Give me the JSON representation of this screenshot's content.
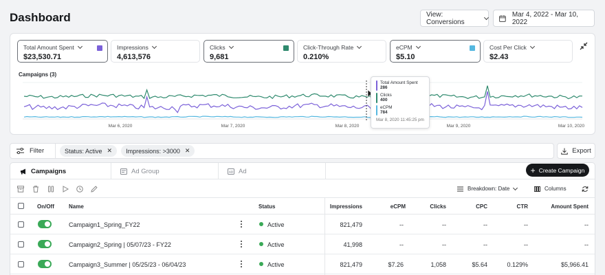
{
  "header": {
    "title": "Dashboard",
    "view_select": "View: Conversions",
    "date_range": "Mar 4, 2022 - Mar 10, 2022"
  },
  "metrics": [
    {
      "label": "Total Amount Spent",
      "value": "$23,530.71",
      "swatch": "#7b61d9",
      "selected": true
    },
    {
      "label": "Impressions",
      "value": "4,613,576",
      "swatch": null,
      "selected": false
    },
    {
      "label": "Clicks",
      "value": "9,681",
      "swatch": "#2f8a6e",
      "selected": true
    },
    {
      "label": "Click-Through Rate",
      "value": "0.210%",
      "swatch": null,
      "selected": false
    },
    {
      "label": "eCPM",
      "value": "$5.10",
      "swatch": "#55b8e0",
      "selected": true
    },
    {
      "label": "Cost Per Click",
      "value": "$2.43",
      "swatch": null,
      "selected": false
    }
  ],
  "chart": {
    "label": "Campaigns (3)",
    "x_ticks": [
      "Mar 6, 2020",
      "Mar 7, 2020",
      "Mar 8, 2020",
      "Mar 9, 2020",
      "Mar 10, 2020"
    ],
    "colors": {
      "spent": "#7b61d9",
      "clicks": "#2f8a6e",
      "ecpm": "#55b8e0"
    },
    "tooltip": {
      "rows": [
        {
          "label": "Total Amount Spent",
          "value": "286",
          "color": "#7b61d9"
        },
        {
          "label": "Clicks",
          "value": "400",
          "color": "#2f8a6e"
        },
        {
          "label": "eCPM",
          "value": "784",
          "color": "#55b8e0"
        }
      ],
      "time": "Mar 8, 2020 11:45:25 pm"
    }
  },
  "filters": {
    "filter_label": "Filter",
    "chips": [
      "Status: Active",
      "Impressions: >3000"
    ],
    "export_label": "Export"
  },
  "tabs": {
    "items": [
      "Campaigns",
      "Ad Group",
      "Ad"
    ],
    "create_label": "Create Campaign"
  },
  "toolbar": {
    "breakdown_label": "Breakdown: Date",
    "columns_label": "Columns"
  },
  "table": {
    "headers": [
      "On/Off",
      "Name",
      "Status",
      "Impressions",
      "eCPM",
      "Clicks",
      "CPC",
      "CTR",
      "Amount Spent"
    ],
    "rows": [
      {
        "name": "Campaign1_Spring_FY22",
        "status": "Active",
        "impressions": "821,479",
        "ecpm": "--",
        "clicks": "--",
        "cpc": "--",
        "ctr": "--",
        "spent": "--"
      },
      {
        "name": "Campaign2_Spring | 05/07/23 - FY22",
        "status": "Active",
        "impressions": "41,998",
        "ecpm": "--",
        "clicks": "--",
        "cpc": "--",
        "ctr": "--",
        "spent": "--"
      },
      {
        "name": "Campaign3_Summer | 05/25/23 - 06/04/23",
        "status": "Active",
        "impressions": "821,479",
        "ecpm": "$7.26",
        "clicks": "1,058",
        "cpc": "$5.64",
        "ctr": "0.129%",
        "spent": "$5,966.41"
      }
    ]
  }
}
